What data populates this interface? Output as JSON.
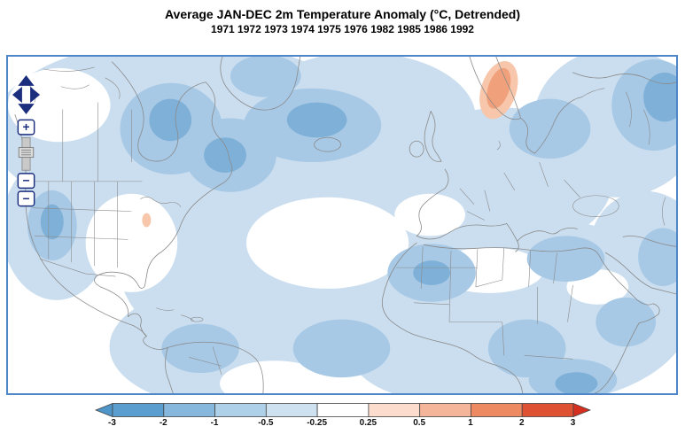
{
  "title": "Average JAN-DEC 2m Temperature Anomaly (°C, Detrended)",
  "subtitle": "1971 1972 1973 1974 1975 1976 1982 1985 1986 1992",
  "controls": {
    "zoom_in_label": "+",
    "zoom_out_label": "−",
    "zoom_out_secondary_label": "−"
  },
  "colorbar": {
    "ticks": [
      "-3",
      "-2",
      "-1",
      "-0.5",
      "-0.25",
      "0.25",
      "0.5",
      "1",
      "2",
      "3"
    ],
    "band_colors": [
      "#5a9ecf",
      "#85b8dc",
      "#aed0e9",
      "#cde1f1",
      "#ffffff",
      "#fbdccd",
      "#f5b59a",
      "#ee8a62",
      "#de5233"
    ],
    "arrow_left": "#4e95c9",
    "arrow_right": "#d62f20"
  },
  "palette": {
    "blue1": "#cbdeef",
    "blue2": "#a7c9e6",
    "blue3": "#7fb0d8",
    "blue4": "#5898cc",
    "orange1": "#f0a17c",
    "orange2": "#f7c6ab",
    "outline": "#8a8a8a",
    "map_border": "#4e86c8",
    "control_navy": "#1c2e7e"
  }
}
